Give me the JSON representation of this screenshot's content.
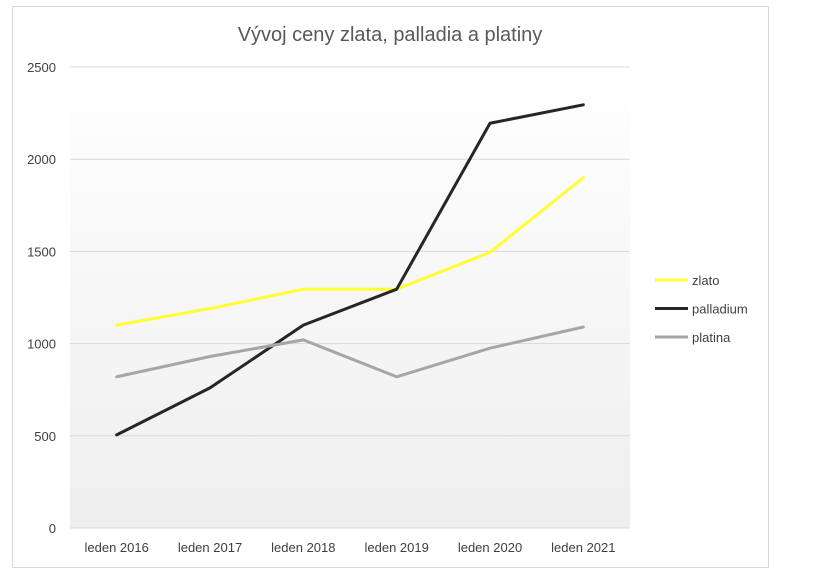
{
  "chart_data": {
    "type": "line",
    "title": "Vývoj ceny zlata, palladia a platiny",
    "categories": [
      "leden 2016",
      "leden 2017",
      "leden 2018",
      "leden 2019",
      "leden 2020",
      "leden 2021"
    ],
    "series": [
      {
        "name": "zlato",
        "color": "#ffff33",
        "values": [
          1100,
          1190,
          1295,
          1295,
          1495,
          1900
        ]
      },
      {
        "name": "palladium",
        "color": "#262626",
        "values": [
          505,
          760,
          1100,
          1295,
          2195,
          2295
        ]
      },
      {
        "name": "platina",
        "color": "#a6a6a6",
        "values": [
          820,
          930,
          1020,
          820,
          975,
          1090
        ]
      }
    ],
    "yticks": [
      "0",
      "500",
      "1000",
      "1500",
      "2000",
      "2500"
    ],
    "ylim": [
      0,
      2500
    ],
    "grid": true,
    "legend_position": "right"
  }
}
